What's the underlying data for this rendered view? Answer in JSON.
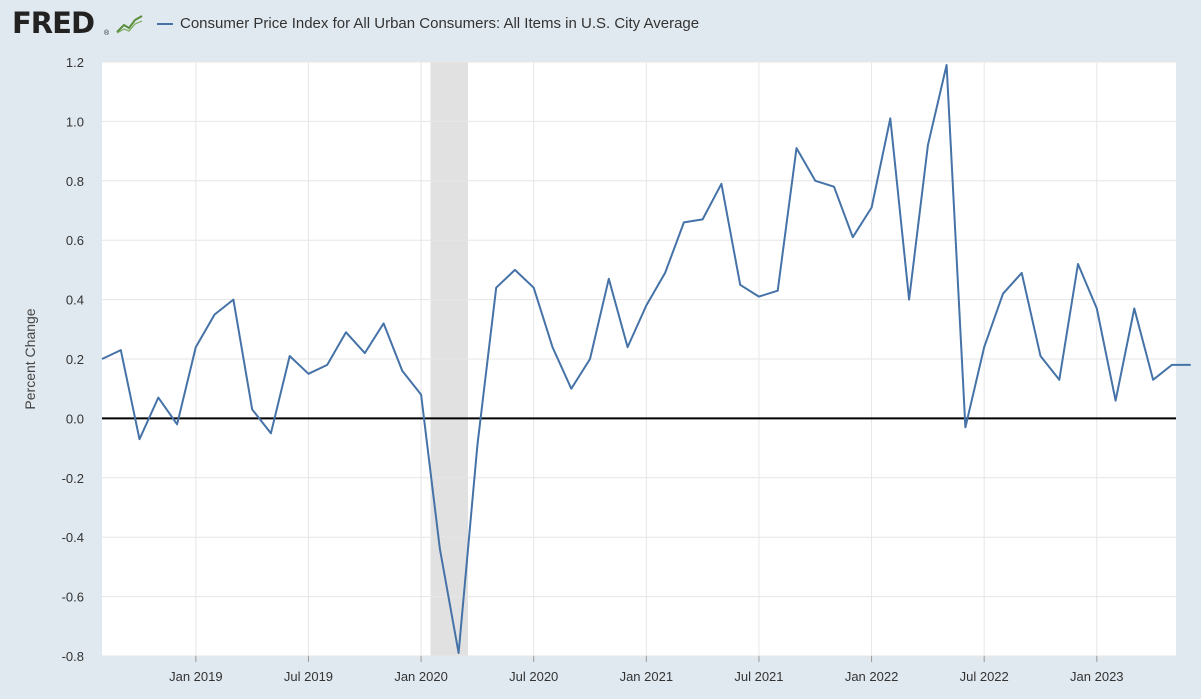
{
  "header": {
    "logo_text": "FRED",
    "logo_reg": "®",
    "series_title": "Consumer Price Index for All Urban Consumers: All Items in U.S. City Average"
  },
  "colors": {
    "line": "#4572a7",
    "recession": "#e1e1e1",
    "background": "#e1e9f0",
    "plot": "#ffffff",
    "zero_line": "#000000"
  },
  "chart_data": {
    "type": "line",
    "title": "Consumer Price Index for All Urban Consumers: All Items in U.S. City Average",
    "xlabel": "",
    "ylabel": "Percent Change",
    "ylim": [
      -0.8,
      1.2
    ],
    "yticks": [
      "1.2",
      "1.0",
      "0.8",
      "0.6",
      "0.4",
      "0.2",
      "0.0",
      "-0.2",
      "-0.4",
      "-0.6",
      "-0.8"
    ],
    "ytick_values": [
      1.2,
      1.0,
      0.8,
      0.6,
      0.4,
      0.2,
      0.0,
      -0.2,
      -0.4,
      -0.6,
      -0.8
    ],
    "x_start": "Aug 2018",
    "x_end": "Jun 2023",
    "xtick_labels": [
      "Jan 2019",
      "Jul 2019",
      "Jan 2020",
      "Jul 2020",
      "Jan 2021",
      "Jul 2021",
      "Jan 2022",
      "Jul 2022",
      "Jan 2023"
    ],
    "xtick_month_index": [
      5,
      11,
      17,
      23,
      29,
      35,
      41,
      47,
      53
    ],
    "recession": {
      "start_month_index": 17.5,
      "end_month_index": 19.5
    },
    "zero_line": 0.0,
    "series": [
      {
        "name": "Consumer Price Index for All Urban Consumers: All Items in U.S. City Average",
        "months": [
          "Aug 2018",
          "Sep 2018",
          "Oct 2018",
          "Nov 2018",
          "Dec 2018",
          "Jan 2019",
          "Feb 2019",
          "Mar 2019",
          "Apr 2019",
          "May 2019",
          "Jun 2019",
          "Jul 2019",
          "Aug 2019",
          "Sep 2019",
          "Oct 2019",
          "Nov 2019",
          "Dec 2019",
          "Jan 2020",
          "Feb 2020",
          "Mar 2020",
          "Apr 2020",
          "May 2020",
          "Jun 2020",
          "Jul 2020",
          "Aug 2020",
          "Sep 2020",
          "Oct 2020",
          "Nov 2020",
          "Dec 2020",
          "Jan 2021",
          "Feb 2021",
          "Mar 2021",
          "Apr 2021",
          "May 2021",
          "Jun 2021",
          "Jul 2021",
          "Aug 2021",
          "Sep 2021",
          "Oct 2021",
          "Nov 2021",
          "Dec 2021",
          "Jan 2022",
          "Feb 2022",
          "Mar 2022",
          "Apr 2022",
          "May 2022",
          "Jun 2022",
          "Jul 2022",
          "Aug 2022",
          "Sep 2022",
          "Oct 2022",
          "Nov 2022",
          "Dec 2022",
          "Jan 2023",
          "Feb 2023",
          "Mar 2023",
          "Apr 2023",
          "May 2023",
          "Jun 2023"
        ],
        "values": [
          0.2,
          0.23,
          -0.07,
          0.07,
          -0.02,
          0.24,
          0.35,
          0.4,
          0.03,
          -0.05,
          0.21,
          0.15,
          0.18,
          0.29,
          0.22,
          0.32,
          0.16,
          0.08,
          -0.44,
          -0.79,
          -0.09,
          0.44,
          0.5,
          0.44,
          0.24,
          0.1,
          0.2,
          0.47,
          0.24,
          0.38,
          0.49,
          0.66,
          0.67,
          0.79,
          0.45,
          0.41,
          0.43,
          0.91,
          0.8,
          0.78,
          0.61,
          0.71,
          1.01,
          0.4,
          0.92,
          1.19,
          -0.03,
          0.24,
          0.42,
          0.49,
          0.21,
          0.13,
          0.52,
          0.37,
          0.06,
          0.37,
          0.13,
          0.18,
          0.18
        ]
      }
    ]
  }
}
